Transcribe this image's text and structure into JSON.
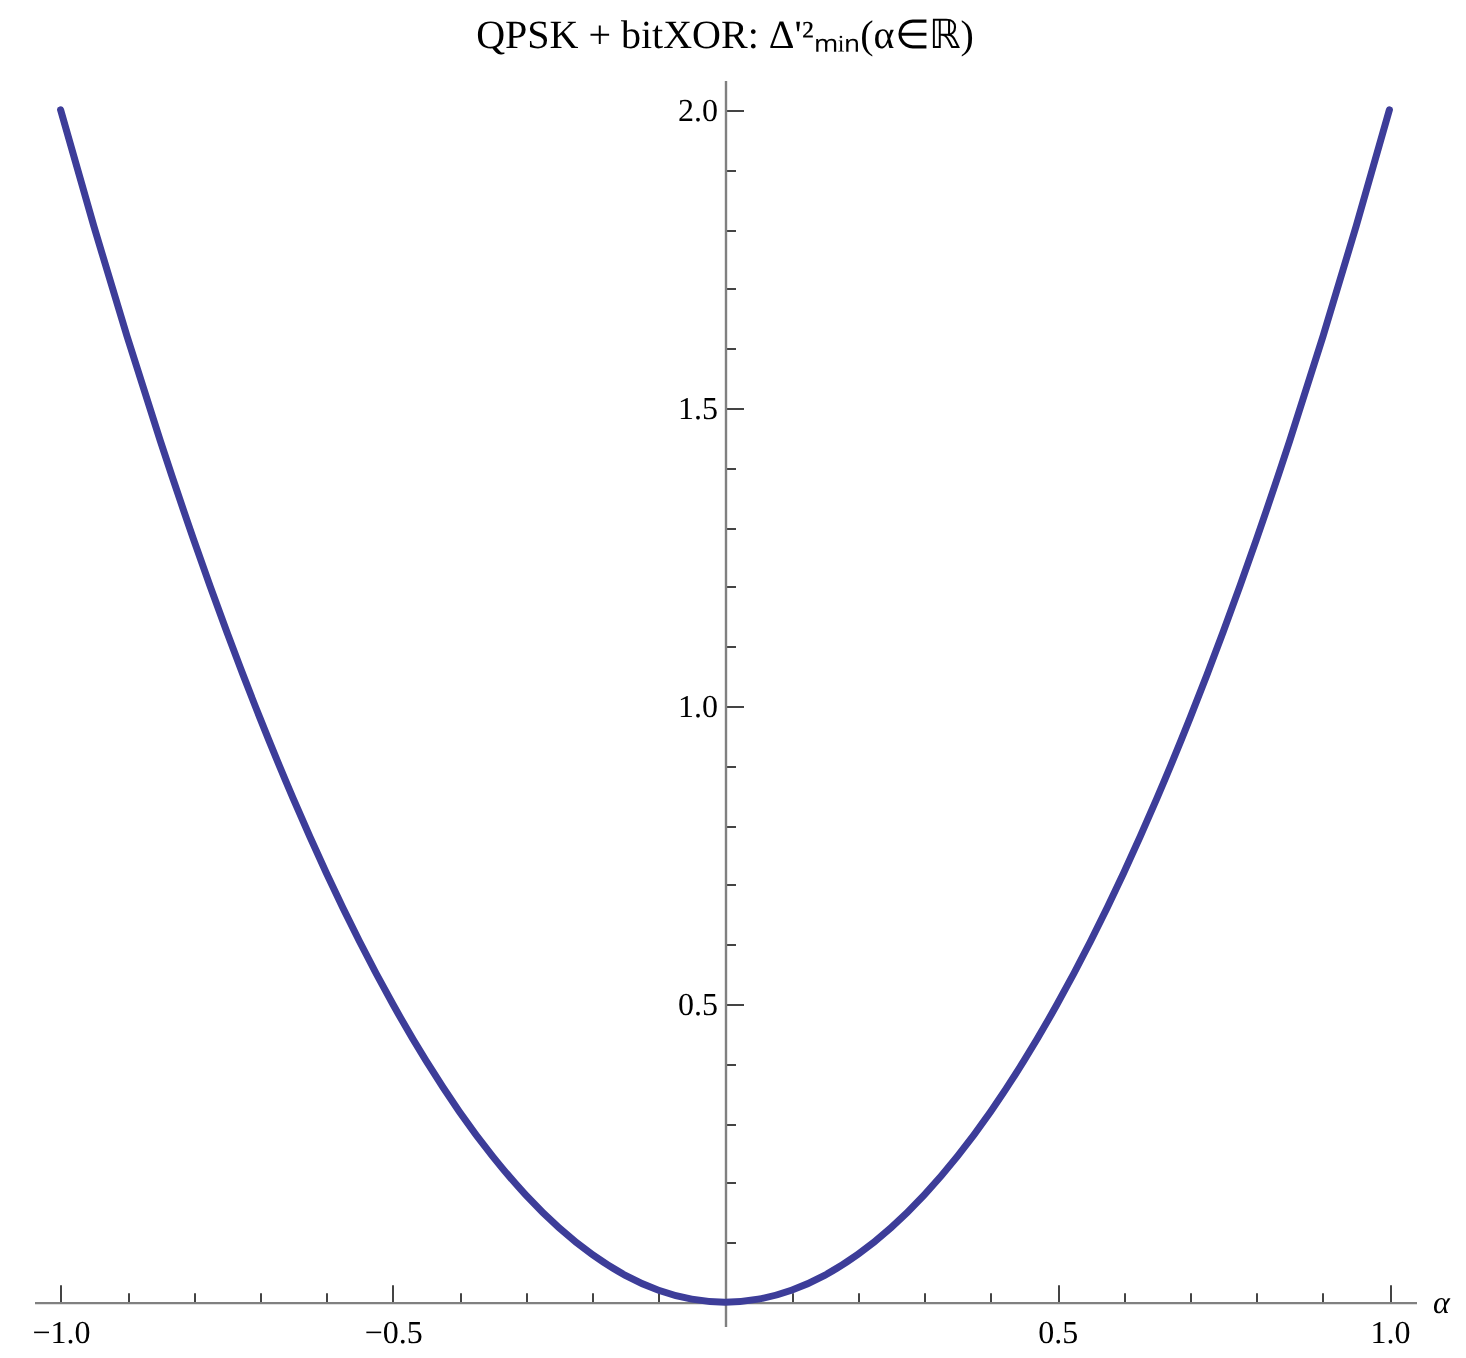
{
  "chart_data": {
    "type": "line",
    "title": "QPSK + bitXOR: Δ'²ₘᵢₙ(α∈ℝ)",
    "xlabel": "α",
    "x": [
      -1.0,
      -0.95,
      -0.9,
      -0.85,
      -0.8,
      -0.75,
      -0.7,
      -0.65,
      -0.6,
      -0.55,
      -0.5,
      -0.45,
      -0.4,
      -0.35,
      -0.3,
      -0.25,
      -0.2,
      -0.15,
      -0.1,
      -0.05,
      0.0,
      0.05,
      0.1,
      0.15,
      0.2,
      0.25,
      0.3,
      0.35,
      0.4,
      0.45,
      0.5,
      0.55,
      0.6,
      0.65,
      0.7,
      0.75,
      0.8,
      0.85,
      0.9,
      0.95,
      1.0
    ],
    "series": [
      {
        "color": "#3d3d99",
        "values": [
          2.0,
          1.805,
          1.62,
          1.445,
          1.28,
          1.125,
          0.98,
          0.845,
          0.72,
          0.605,
          0.5,
          0.405,
          0.32,
          0.245,
          0.18,
          0.125,
          0.08,
          0.045,
          0.02,
          0.005,
          0.0,
          0.005,
          0.02,
          0.045,
          0.08,
          0.125,
          0.18,
          0.245,
          0.32,
          0.405,
          0.5,
          0.605,
          0.72,
          0.845,
          0.98,
          1.125,
          1.28,
          1.445,
          1.62,
          1.805,
          2.0
        ]
      }
    ],
    "xlim": [
      -1.04,
      1.04
    ],
    "ylim": [
      -0.04,
      2.05
    ],
    "xticks": [
      {
        "value": -1.0,
        "label": "−1.0"
      },
      {
        "value": -0.9,
        "label": null
      },
      {
        "value": -0.8,
        "label": null
      },
      {
        "value": -0.7,
        "label": null
      },
      {
        "value": -0.6,
        "label": null
      },
      {
        "value": -0.5,
        "label": "−0.5"
      },
      {
        "value": -0.4,
        "label": null
      },
      {
        "value": -0.3,
        "label": null
      },
      {
        "value": -0.2,
        "label": null
      },
      {
        "value": -0.1,
        "label": null
      },
      {
        "value": 0.1,
        "label": null
      },
      {
        "value": 0.2,
        "label": null
      },
      {
        "value": 0.3,
        "label": null
      },
      {
        "value": 0.4,
        "label": null
      },
      0.5,
      {
        "value": 0.6,
        "label": null
      },
      {
        "value": 0.7,
        "label": null
      },
      {
        "value": 0.8,
        "label": null
      },
      {
        "value": 0.9,
        "label": null
      },
      {
        "value": 1.0,
        "label": "1.0"
      }
    ],
    "yticks": [
      {
        "value": 0.1,
        "label": null
      },
      {
        "value": 0.2,
        "label": null
      },
      {
        "value": 0.3,
        "label": null
      },
      {
        "value": 0.4,
        "label": null
      },
      0.5,
      {
        "value": 0.6,
        "label": null
      },
      {
        "value": 0.7,
        "label": null
      },
      {
        "value": 0.8,
        "label": null
      },
      {
        "value": 0.9,
        "label": null
      },
      {
        "value": 1.0,
        "label": "1.0"
      },
      {
        "value": 1.1,
        "label": null
      },
      {
        "value": 1.2,
        "label": null
      },
      {
        "value": 1.3,
        "label": null
      },
      {
        "value": 1.4,
        "label": null
      },
      1.5,
      {
        "value": 1.6,
        "label": null
      },
      {
        "value": 1.7,
        "label": null
      },
      {
        "value": 1.8,
        "label": null
      },
      {
        "value": 1.9,
        "label": null
      },
      {
        "value": 2.0,
        "label": "2.0"
      }
    ],
    "line_style": "solid"
  }
}
